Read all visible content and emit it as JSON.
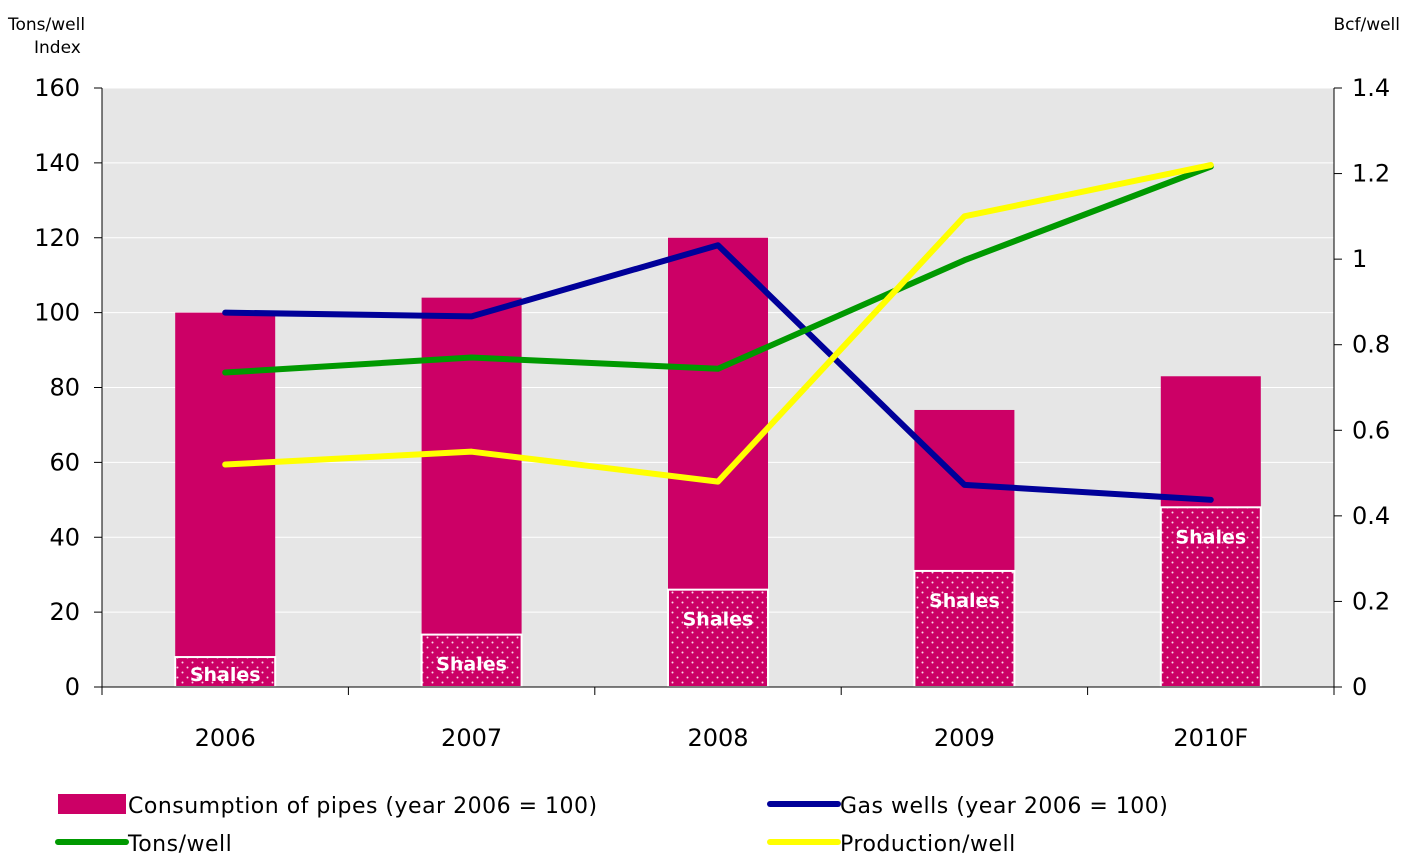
{
  "chart_data": {
    "type": "bar",
    "categories": [
      "2006",
      "2007",
      "2008",
      "2009",
      "2010F"
    ],
    "left_axis": {
      "titles": [
        "Tons/well",
        "Index"
      ],
      "ylim": [
        0,
        160
      ],
      "ticks": [
        "0",
        "20",
        "40",
        "60",
        "80",
        "100",
        "120",
        "140",
        "160"
      ]
    },
    "right_axis": {
      "title": "Bcf/well",
      "ylim": [
        0,
        1.4
      ],
      "ticks": [
        "0",
        "0.2",
        "0.4",
        "0.6",
        "0.8",
        "1",
        "1.2",
        "1.4"
      ]
    },
    "bars": {
      "name": "Consumption of pipes (year 2006 = 100)",
      "values": [
        100,
        104,
        120,
        74,
        83
      ],
      "shales_values": [
        8,
        14,
        26,
        31,
        48
      ],
      "shales_label": "Shales",
      "color": "#cc0066"
    },
    "lines": [
      {
        "name": "Gas wells (year 2006 = 100)",
        "axis": "left",
        "values": [
          100,
          99,
          118,
          54,
          50
        ],
        "color": "#000099"
      },
      {
        "name": "Tons/well",
        "axis": "left",
        "values": [
          84,
          88,
          85,
          114,
          139
        ],
        "color": "#009900"
      },
      {
        "name": "Production/well",
        "axis": "right",
        "values": [
          0.52,
          0.55,
          0.48,
          1.1,
          1.22
        ],
        "color": "#ffff00"
      }
    ],
    "plot_background": "#e6e6e6",
    "grid": true,
    "legend_position": "bottom"
  }
}
